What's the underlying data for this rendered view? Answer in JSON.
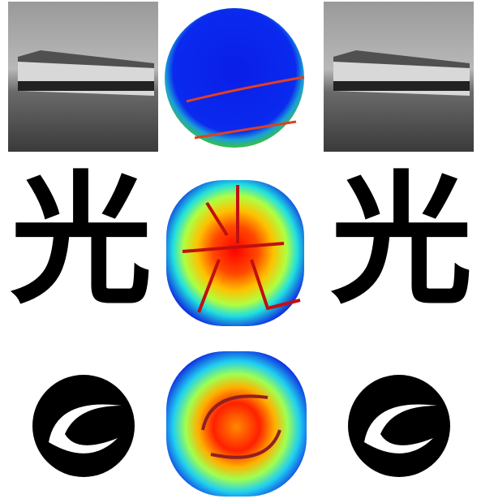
{
  "row_2": {
    "input": "光",
    "output": "光"
  }
}
